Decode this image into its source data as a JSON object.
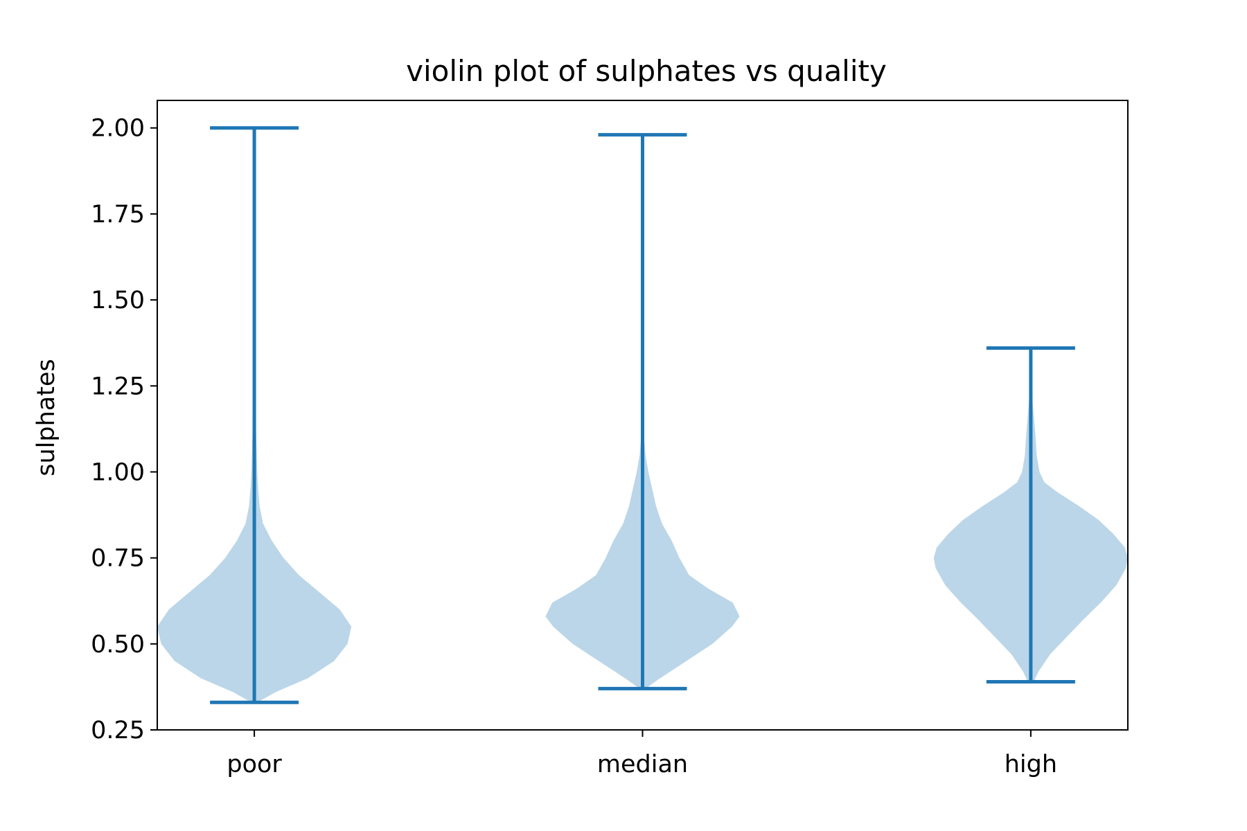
{
  "chart_data": {
    "type": "violin",
    "title": "violin plot of sulphates vs quality",
    "xlabel": "",
    "ylabel": "sulphates",
    "categories": [
      "poor",
      "median",
      "high"
    ],
    "ylim": [
      0.25,
      2.08
    ],
    "yticks": [
      0.25,
      0.5,
      0.75,
      1.0,
      1.25,
      1.5,
      1.75,
      2.0
    ],
    "ytick_labels": [
      "0.25",
      "0.50",
      "0.75",
      "1.00",
      "1.25",
      "1.50",
      "1.75",
      "2.00"
    ],
    "grid": false,
    "colors": {
      "body": "#1f77b4",
      "body_opacity": 0.3,
      "lines": "#1f77b4",
      "axes": "#000000"
    },
    "violins": [
      {
        "category": "poor",
        "min": 0.33,
        "max": 2.0,
        "density": [
          [
            0.33,
            0.03
          ],
          [
            0.36,
            0.22
          ],
          [
            0.4,
            0.55
          ],
          [
            0.45,
            0.82
          ],
          [
            0.5,
            0.96
          ],
          [
            0.55,
            1.0
          ],
          [
            0.6,
            0.88
          ],
          [
            0.65,
            0.67
          ],
          [
            0.7,
            0.46
          ],
          [
            0.75,
            0.3
          ],
          [
            0.8,
            0.18
          ],
          [
            0.85,
            0.09
          ],
          [
            0.9,
            0.055
          ],
          [
            0.95,
            0.04
          ],
          [
            1.0,
            0.03
          ],
          [
            1.1,
            0.02
          ],
          [
            1.2,
            0.01
          ],
          [
            1.3,
            0.006
          ],
          [
            1.5,
            0.004
          ],
          [
            1.7,
            0.003
          ],
          [
            1.9,
            0.002
          ],
          [
            2.0,
            0.001
          ]
        ]
      },
      {
        "category": "median",
        "min": 0.37,
        "max": 1.98,
        "density": [
          [
            0.37,
            0.03
          ],
          [
            0.4,
            0.18
          ],
          [
            0.45,
            0.45
          ],
          [
            0.5,
            0.72
          ],
          [
            0.55,
            0.92
          ],
          [
            0.58,
            1.0
          ],
          [
            0.62,
            0.93
          ],
          [
            0.66,
            0.68
          ],
          [
            0.7,
            0.48
          ],
          [
            0.75,
            0.38
          ],
          [
            0.8,
            0.3
          ],
          [
            0.85,
            0.2
          ],
          [
            0.9,
            0.14
          ],
          [
            0.95,
            0.1
          ],
          [
            1.0,
            0.06
          ],
          [
            1.05,
            0.03
          ],
          [
            1.1,
            0.015
          ],
          [
            1.2,
            0.01
          ],
          [
            1.4,
            0.006
          ],
          [
            1.6,
            0.004
          ],
          [
            1.8,
            0.003
          ],
          [
            1.98,
            0.002
          ]
        ]
      },
      {
        "category": "high",
        "min": 0.39,
        "max": 1.36,
        "density": [
          [
            0.39,
            0.03
          ],
          [
            0.42,
            0.08
          ],
          [
            0.47,
            0.2
          ],
          [
            0.52,
            0.37
          ],
          [
            0.57,
            0.54
          ],
          [
            0.62,
            0.72
          ],
          [
            0.67,
            0.88
          ],
          [
            0.72,
            0.98
          ],
          [
            0.75,
            1.0
          ],
          [
            0.78,
            0.97
          ],
          [
            0.82,
            0.85
          ],
          [
            0.86,
            0.7
          ],
          [
            0.9,
            0.5
          ],
          [
            0.94,
            0.28
          ],
          [
            0.97,
            0.14
          ],
          [
            1.0,
            0.09
          ],
          [
            1.05,
            0.06
          ],
          [
            1.1,
            0.05
          ],
          [
            1.15,
            0.035
          ],
          [
            1.2,
            0.02
          ],
          [
            1.26,
            0.01
          ],
          [
            1.3,
            0.006
          ],
          [
            1.36,
            0.002
          ]
        ]
      }
    ]
  }
}
